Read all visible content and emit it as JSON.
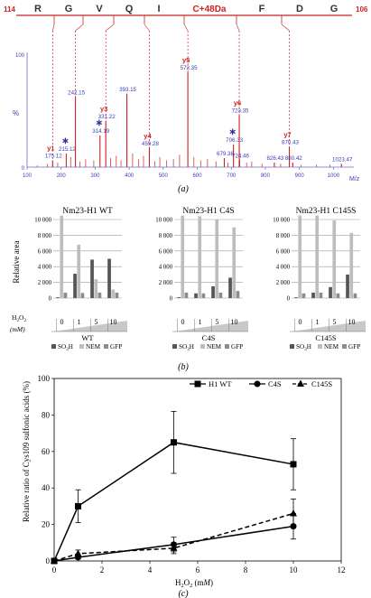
{
  "panel_labels": {
    "a": "(a)",
    "b": "(b)",
    "c": "(c)"
  },
  "chart_data": [
    {
      "type": "spectrum",
      "sequence": {
        "left_index": "114",
        "right_index": "106",
        "residues": [
          "R",
          "G",
          "V",
          "Q",
          "I",
          "C+48Da",
          "F",
          "D",
          "G"
        ]
      },
      "y_axis_label": "%",
      "y_ticks": [
        {
          "label": "100",
          "v": 100
        },
        {
          "label": "0",
          "v": 0
        }
      ],
      "x_axis_label": "M/z",
      "x_ticks": [
        100,
        200,
        300,
        400,
        500,
        600,
        700,
        800,
        900,
        1000
      ],
      "xlim": [
        100,
        1060
      ],
      "ylim": [
        0,
        100
      ],
      "accent_color": "#cc2222",
      "label_color": "#3b3bb5",
      "peaks": [
        {
          "mz": 175.12,
          "h": 6,
          "ion": "y1",
          "label": "175.12"
        },
        {
          "mz": 215.12,
          "h": 12,
          "ion": "",
          "label": "215.12",
          "star": true
        },
        {
          "mz": 242.15,
          "h": 62,
          "ion": "",
          "label": "242.15"
        },
        {
          "mz": 314.19,
          "h": 28,
          "ion": "",
          "label": "314.19",
          "star": true
        },
        {
          "mz": 331.22,
          "h": 41,
          "ion": "y3",
          "label": "331.22"
        },
        {
          "mz": 393.15,
          "h": 65,
          "ion": "",
          "label": "393.15"
        },
        {
          "mz": 459.28,
          "h": 17,
          "ion": "y4",
          "label": "459.28"
        },
        {
          "mz": 572.35,
          "h": 84,
          "ion": "y5",
          "label": "572.35"
        },
        {
          "mz": 679.38,
          "h": 8,
          "ion": "",
          "label": "679.38"
        },
        {
          "mz": 706.33,
          "h": 20,
          "ion": "",
          "label": "706.33",
          "star": true
        },
        {
          "mz": 723.35,
          "h": 46,
          "ion": "y6",
          "label": "723.35"
        },
        {
          "mz": 724.46,
          "h": 6,
          "ion": "",
          "label": "724.46"
        },
        {
          "mz": 826.43,
          "h": 4,
          "ion": "",
          "label": "826.43"
        },
        {
          "mz": 870.43,
          "h": 18,
          "ion": "y7",
          "label": "870.43"
        },
        {
          "mz": 880.42,
          "h": 4,
          "ion": "",
          "label": "880.42"
        },
        {
          "mz": 1023.47,
          "h": 3,
          "ion": "",
          "label": "1023.47"
        }
      ],
      "minor_peaks": [
        {
          "mz": 130,
          "h": 1.5
        },
        {
          "mz": 160,
          "h": 3
        },
        {
          "mz": 190,
          "h": 4
        },
        {
          "mz": 228,
          "h": 9
        },
        {
          "mz": 255,
          "h": 5
        },
        {
          "mz": 272,
          "h": 7
        },
        {
          "mz": 296,
          "h": 6
        },
        {
          "mz": 345,
          "h": 8
        },
        {
          "mz": 362,
          "h": 10
        },
        {
          "mz": 376,
          "h": 6
        },
        {
          "mz": 410,
          "h": 12
        },
        {
          "mz": 428,
          "h": 7
        },
        {
          "mz": 442,
          "h": 10
        },
        {
          "mz": 475,
          "h": 5
        },
        {
          "mz": 490,
          "h": 9
        },
        {
          "mz": 510,
          "h": 6
        },
        {
          "mz": 530,
          "h": 7
        },
        {
          "mz": 548,
          "h": 11
        },
        {
          "mz": 590,
          "h": 9
        },
        {
          "mz": 610,
          "h": 6
        },
        {
          "mz": 630,
          "h": 7
        },
        {
          "mz": 655,
          "h": 5
        },
        {
          "mz": 690,
          "h": 4
        },
        {
          "mz": 745,
          "h": 4
        },
        {
          "mz": 760,
          "h": 5
        },
        {
          "mz": 790,
          "h": 3
        },
        {
          "mz": 845,
          "h": 3
        },
        {
          "mz": 905,
          "h": 2
        },
        {
          "mz": 950,
          "h": 2
        },
        {
          "mz": 990,
          "h": 2
        }
      ],
      "fragment_lines_mz": [
        175.12,
        242.15,
        331.22,
        459.28,
        572.35,
        723.35,
        870.43
      ]
    },
    {
      "type": "bar",
      "ylabel": "Relative area",
      "ylim": [
        0,
        10000
      ],
      "y_ticks": [
        "0",
        "2 000",
        "4 000",
        "6 000",
        "8 000",
        "10 000"
      ],
      "y_tick_values": [
        0,
        2000,
        4000,
        6000,
        8000,
        10000
      ],
      "categories": [
        "0",
        "1",
        "5",
        "10"
      ],
      "x_title_lines": [
        "H2O2",
        "(mM)"
      ],
      "legend": [
        {
          "name": "SO3H",
          "color": "#555555"
        },
        {
          "name": "NEM",
          "color": "#bdbdbd"
        },
        {
          "name": "GFP",
          "color": "#8c8c8c"
        }
      ],
      "panels": [
        {
          "title": "Nm23-H1 WT",
          "group": "WT",
          "series": [
            {
              "name": "SO3H",
              "values": [
                100,
                3100,
                4900,
                5000
              ]
            },
            {
              "name": "NEM",
              "values": [
                10500,
                6800,
                2400,
                1100
              ]
            },
            {
              "name": "GFP",
              "values": [
                700,
                650,
                700,
                700
              ]
            }
          ]
        },
        {
          "title": "Nm23-H1 C4S",
          "group": "C4S",
          "series": [
            {
              "name": "SO3H",
              "values": [
                100,
                600,
                1500,
                2600
              ]
            },
            {
              "name": "NEM",
              "values": [
                10500,
                10400,
                10000,
                9000
              ]
            },
            {
              "name": "GFP",
              "values": [
                700,
                600,
                700,
                900
              ]
            }
          ]
        },
        {
          "title": "Nm23-H1 C145S",
          "group": "C145S",
          "series": [
            {
              "name": "SO3H",
              "values": [
                100,
                700,
                1400,
                3000
              ]
            },
            {
              "name": "NEM",
              "values": [
                10500,
                10500,
                9900,
                8300
              ]
            },
            {
              "name": "GFP",
              "values": [
                600,
                700,
                600,
                600
              ]
            }
          ]
        }
      ]
    },
    {
      "type": "line",
      "xlabel": "H2O2 (mM)",
      "ylabel": "Relative ratio of Cys109 sulfonic acids (%)",
      "xlim": [
        0,
        12
      ],
      "ylim": [
        0,
        100
      ],
      "x_ticks": [
        0,
        2,
        4,
        6,
        8,
        10,
        12
      ],
      "y_ticks": [
        0,
        20,
        40,
        60,
        80,
        100
      ],
      "x": [
        0,
        1,
        5,
        10
      ],
      "series": [
        {
          "name": "H1 WT",
          "marker": "square",
          "dash": "solid",
          "values": [
            0,
            30,
            65,
            53
          ],
          "err": [
            0,
            9,
            17,
            14
          ]
        },
        {
          "name": "C4S",
          "marker": "circle",
          "dash": "solid",
          "values": [
            0,
            2,
            9,
            19
          ],
          "err": [
            0,
            1,
            4,
            7
          ]
        },
        {
          "name": "C145S",
          "marker": "triangle",
          "dash": "dashed",
          "values": [
            0,
            4,
            7,
            26
          ],
          "err": [
            0,
            2,
            3,
            8
          ]
        }
      ],
      "legend_position": "top-right"
    }
  ]
}
